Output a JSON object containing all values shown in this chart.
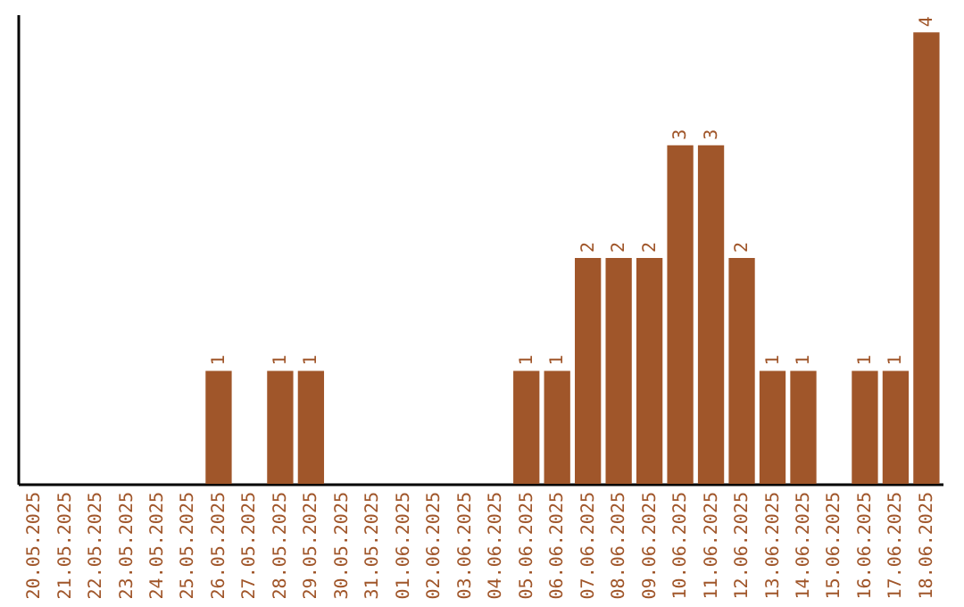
{
  "chart_data": {
    "type": "bar",
    "categories": [
      "20.05.2025",
      "21.05.2025",
      "22.05.2025",
      "23.05.2025",
      "24.05.2025",
      "25.05.2025",
      "26.05.2025",
      "27.05.2025",
      "28.05.2025",
      "29.05.2025",
      "30.05.2025",
      "31.05.2025",
      "01.06.2025",
      "02.06.2025",
      "03.06.2025",
      "04.06.2025",
      "05.06.2025",
      "06.06.2025",
      "07.06.2025",
      "08.06.2025",
      "09.06.2025",
      "10.06.2025",
      "11.06.2025",
      "12.06.2025",
      "13.06.2025",
      "14.06.2025",
      "15.06.2025",
      "16.06.2025",
      "17.06.2025",
      "18.06.2025"
    ],
    "values": [
      0,
      0,
      0,
      0,
      0,
      0,
      1,
      0,
      1,
      1,
      0,
      0,
      0,
      0,
      0,
      0,
      1,
      1,
      2,
      2,
      2,
      3,
      3,
      2,
      1,
      1,
      0,
      1,
      1,
      4
    ],
    "value_labels": [
      null,
      null,
      null,
      null,
      null,
      null,
      "1",
      null,
      "1",
      "1",
      null,
      null,
      null,
      null,
      null,
      null,
      "1",
      "1",
      "2",
      "2",
      "2",
      "3",
      "3",
      "2",
      "1",
      "1",
      null,
      "1",
      "1",
      "4"
    ],
    "color": "#a0562a",
    "tick_labels": "x",
    "grid": false
  }
}
